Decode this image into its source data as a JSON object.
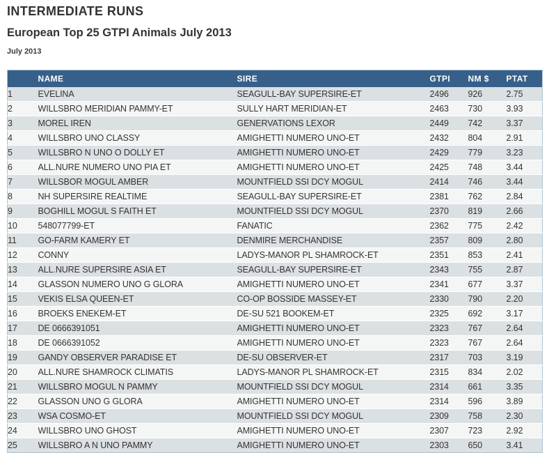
{
  "page": {
    "title": "INTERMEDIATE RUNS",
    "subtitle": "European Top 25 GTPI Animals July 2013",
    "date": "July 2013"
  },
  "colors": {
    "header_bg": "#366089",
    "header_text": "#ffffff",
    "row_odd": "#dbe0e3",
    "row_even": "#f4f6f6",
    "table_border": "#aec2d1",
    "link_color": "#2263ae",
    "text_color": "#333333"
  },
  "table": {
    "columns": [
      "",
      "NAME",
      "SIRE",
      "GTPI",
      "NM $",
      "PTAT"
    ],
    "rows": [
      {
        "rank": "1",
        "name": "EVELINA",
        "sire": "SEAGULL-BAY SUPERSIRE-ET",
        "gtpi": "2496",
        "nm": "926",
        "ptat": "2.75",
        "link": false
      },
      {
        "rank": "2",
        "name": "WILLSBRO MERIDIAN PAMMY-ET",
        "sire": "SULLY HART MERIDIAN-ET",
        "gtpi": "2463",
        "nm": "730",
        "ptat": "3.93",
        "link": true
      },
      {
        "rank": "3",
        "name": "MOREL IREN",
        "sire": "GENERVATIONS LEXOR",
        "gtpi": "2449",
        "nm": "742",
        "ptat": "3.37",
        "link": false
      },
      {
        "rank": "4",
        "name": "WILLSBRO UNO CLASSY",
        "sire": "AMIGHETTI NUMERO UNO-ET",
        "gtpi": "2432",
        "nm": "804",
        "ptat": "2.91",
        "link": true
      },
      {
        "rank": "5",
        "name": "WILLSBRO N UNO O DOLLY ET",
        "sire": "AMIGHETTI NUMERO UNO-ET",
        "gtpi": "2429",
        "nm": "779",
        "ptat": "3.23",
        "link": true
      },
      {
        "rank": "6",
        "name": "ALL.NURE NUMERO UNO PIA ET",
        "sire": "AMIGHETTI NUMERO UNO-ET",
        "gtpi": "2425",
        "nm": "748",
        "ptat": "3.44",
        "link": false
      },
      {
        "rank": "7",
        "name": "WILLSBOR MOGUL AMBER",
        "sire": "MOUNTFIELD SSI DCY MOGUL",
        "gtpi": "2414",
        "nm": "746",
        "ptat": "3.44",
        "link": true
      },
      {
        "rank": "8",
        "name": "NH SUPERSIRE REALTIME",
        "sire": "SEAGULL-BAY SUPERSIRE-ET",
        "gtpi": "2381",
        "nm": "762",
        "ptat": "2.84",
        "link": true
      },
      {
        "rank": "9",
        "name": "BOGHILL MOGUL S FAITH ET",
        "sire": "MOUNTFIELD SSI DCY MOGUL",
        "gtpi": "2370",
        "nm": "819",
        "ptat": "2.66",
        "link": false
      },
      {
        "rank": "10",
        "name": "548077799-ET",
        "sire": "FANATIC",
        "gtpi": "2362",
        "nm": "775",
        "ptat": "2.42",
        "link": false
      },
      {
        "rank": "11",
        "name": "GO-FARM KAMERY ET",
        "sire": "DENMIRE MERCHANDISE",
        "gtpi": "2357",
        "nm": "809",
        "ptat": "2.80",
        "link": false
      },
      {
        "rank": "12",
        "name": "CONNY",
        "sire": "LADYS-MANOR PL SHAMROCK-ET",
        "gtpi": "2351",
        "nm": "853",
        "ptat": "2.41",
        "link": false
      },
      {
        "rank": "13",
        "name": "ALL.NURE SUPERSIRE ASIA ET",
        "sire": "SEAGULL-BAY SUPERSIRE-ET",
        "gtpi": "2343",
        "nm": "755",
        "ptat": "2.87",
        "link": false
      },
      {
        "rank": "14",
        "name": "GLASSON NUMERO UNO G GLORA",
        "sire": "AMIGHETTI NUMERO UNO-ET",
        "gtpi": "2341",
        "nm": "677",
        "ptat": "3.37",
        "link": false
      },
      {
        "rank": "15",
        "name": "VEKIS ELSA QUEEN-ET",
        "sire": "CO-OP BOSSIDE MASSEY-ET",
        "gtpi": "2330",
        "nm": "790",
        "ptat": "2.20",
        "link": true
      },
      {
        "rank": "16",
        "name": "BROEKS ENEKEM-ET",
        "sire": "DE-SU 521 BOOKEM-ET",
        "gtpi": "2325",
        "nm": "692",
        "ptat": "3.17",
        "link": true
      },
      {
        "rank": "17",
        "name": "DE 0666391051",
        "sire": "AMIGHETTI NUMERO UNO-ET",
        "gtpi": "2323",
        "nm": "767",
        "ptat": "2.64",
        "link": false
      },
      {
        "rank": "18",
        "name": "DE 0666391052",
        "sire": "AMIGHETTI NUMERO UNO-ET",
        "gtpi": "2323",
        "nm": "767",
        "ptat": "2.64",
        "link": false
      },
      {
        "rank": "19",
        "name": "GANDY OBSERVER PARADISE ET",
        "sire": "DE-SU OBSERVER-ET",
        "gtpi": "2317",
        "nm": "703",
        "ptat": "3.19",
        "link": false
      },
      {
        "rank": "20",
        "name": "ALL.NURE SHAMROCK CLIMATIS",
        "sire": "LADYS-MANOR PL SHAMROCK-ET",
        "gtpi": "2315",
        "nm": "834",
        "ptat": "2.02",
        "link": false
      },
      {
        "rank": "21",
        "name": "WILLSBRO MOGUL N PAMMY",
        "sire": "MOUNTFIELD SSI DCY MOGUL",
        "gtpi": "2314",
        "nm": "661",
        "ptat": "3.35",
        "link": true
      },
      {
        "rank": "22",
        "name": "GLASSON UNO G GLORA",
        "sire": "AMIGHETTI NUMERO UNO-ET",
        "gtpi": "2314",
        "nm": "596",
        "ptat": "3.89",
        "link": false
      },
      {
        "rank": "23",
        "name": "WSA COSMO-ET",
        "sire": "MOUNTFIELD SSI DCY MOGUL",
        "gtpi": "2309",
        "nm": "758",
        "ptat": "2.30",
        "link": false
      },
      {
        "rank": "24",
        "name": "WILLSBRO UNO GHOST",
        "sire": "AMIGHETTI NUMERO UNO-ET",
        "gtpi": "2307",
        "nm": "723",
        "ptat": "2.92",
        "link": true
      },
      {
        "rank": "25",
        "name": "WILLSBRO A N UNO PAMMY",
        "sire": "AMIGHETTI NUMERO UNO-ET",
        "gtpi": "2303",
        "nm": "650",
        "ptat": "3.41",
        "link": true
      }
    ]
  }
}
